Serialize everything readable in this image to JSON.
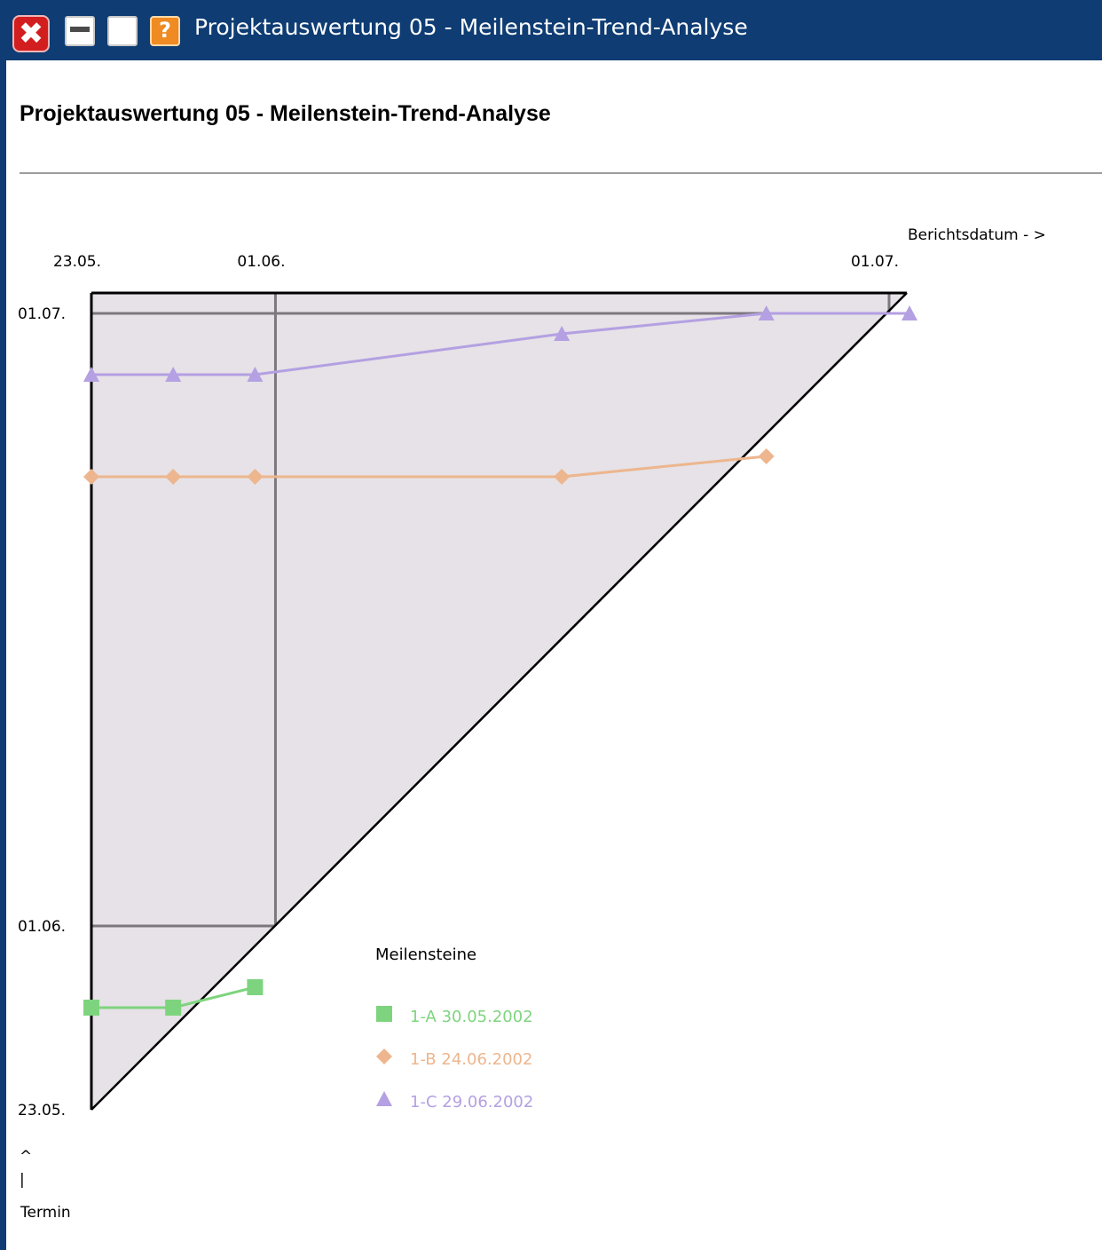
{
  "window": {
    "title": "Projektauswertung 05 - Meilenstein-Trend-Analyse",
    "close_icon_glyph": "✖",
    "help_icon_glyph": "?"
  },
  "page": {
    "heading": "Projektauswertung 05 - Meilenstein-Trend-Analyse"
  },
  "colors": {
    "titlebar": "#0e3c73",
    "plot_fill": "#e6e2e7",
    "grid": "#7d787d"
  },
  "chart_data": {
    "type": "line",
    "chart_kind": "milestone-trend-analysis",
    "x_axis": {
      "label": "Berichtsdatum - >",
      "range": [
        "23.05.",
        "01.07."
      ],
      "ticks": [
        "23.05.",
        "01.06.",
        "01.07."
      ],
      "position": "top"
    },
    "y_axis": {
      "label": "Termin",
      "arrow": "^",
      "arrow_stem": "|",
      "range": [
        "23.05.",
        "01.07."
      ],
      "ticks": [
        "23.05.",
        "01.06.",
        "01.07."
      ]
    },
    "grid": true,
    "diagonal": true,
    "legend": {
      "title": "Meilensteine",
      "placement": "bottom-center"
    },
    "series": [
      {
        "id": "1-A",
        "date": "30.05.2002",
        "color": "#7ed47e",
        "marker": "square",
        "points": [
          {
            "x": "23.05.",
            "y": "28.05."
          },
          {
            "x": "27.05.",
            "y": "28.05."
          },
          {
            "x": "31.05.",
            "y": "29.05."
          }
        ]
      },
      {
        "id": "1-B",
        "date": "24.06.2002",
        "color": "#edb68e",
        "marker": "diamond",
        "points": [
          {
            "x": "23.05.",
            "y": "23.06."
          },
          {
            "x": "27.05.",
            "y": "23.06."
          },
          {
            "x": "31.05.",
            "y": "23.06."
          },
          {
            "x": "15.06.",
            "y": "23.06."
          },
          {
            "x": "25.06.",
            "y": "24.06."
          }
        ]
      },
      {
        "id": "1-C",
        "date": "29.06.2002",
        "color": "#b4a0e2",
        "marker": "triangle",
        "points": [
          {
            "x": "23.05.",
            "y": "28.06."
          },
          {
            "x": "27.05.",
            "y": "28.06."
          },
          {
            "x": "31.05.",
            "y": "28.06."
          },
          {
            "x": "15.06.",
            "y": "30.06."
          },
          {
            "x": "25.06.",
            "y": "01.07."
          },
          {
            "x": "02.07.",
            "y": "01.07."
          }
        ]
      }
    ]
  }
}
